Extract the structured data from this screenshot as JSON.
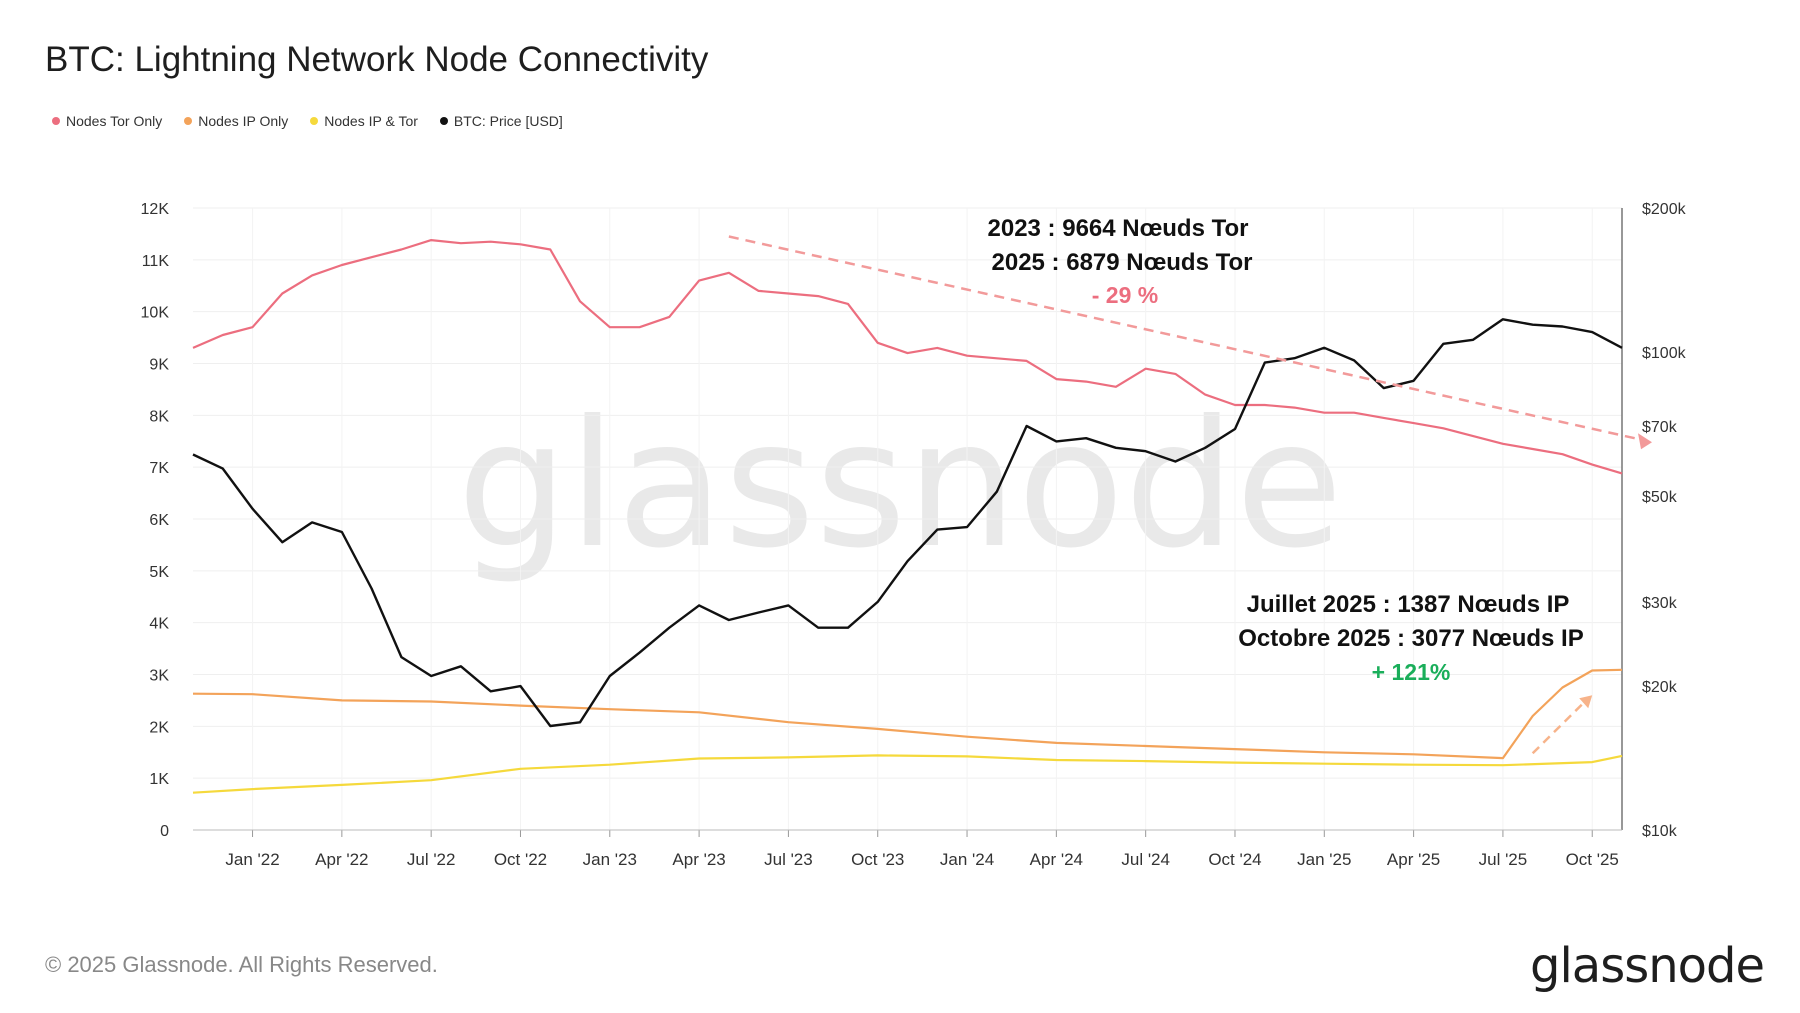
{
  "title": "BTC: Lightning Network Node Connectivity",
  "legend": [
    {
      "label": "Nodes Tor Only",
      "color": "#ec6e7f"
    },
    {
      "label": "Nodes IP Only",
      "color": "#f3a35a"
    },
    {
      "label": "Nodes IP & Tor",
      "color": "#f5d93c"
    },
    {
      "label": "BTC: Price [USD]",
      "color": "#111111"
    }
  ],
  "annotations": {
    "tor_line1": "2023 : 9664 Nœuds Tor",
    "tor_line2": "2025 : 6879 Nœuds Tor",
    "tor_pct": "- 29 %",
    "ip_line1": "Juillet 2025 : 1387 Nœuds IP",
    "ip_line2": "Octobre 2025 : 3077 Nœuds IP",
    "ip_pct": "+ 121%"
  },
  "watermark": "glassnode",
  "copyright": "© 2025 Glassnode. All Rights Reserved.",
  "logo": "glassnode",
  "colors": {
    "tor": "#ec6e7f",
    "ip": "#f3a35a",
    "iptor": "#f5d93c",
    "price": "#111111",
    "pct_down": "#ec6e7f",
    "pct_up": "#1aae5a",
    "trend": "#f29a9a"
  },
  "chart_data": {
    "type": "line",
    "title": "BTC: Lightning Network Node Connectivity",
    "x_ticks": [
      "Jan '22",
      "Apr '22",
      "Jul '22",
      "Oct '22",
      "Jan '23",
      "Apr '23",
      "Jul '23",
      "Oct '23",
      "Jan '24",
      "Apr '24",
      "Jul '24",
      "Oct '24",
      "Jan '25",
      "Apr '25",
      "Jul '25",
      "Oct '25"
    ],
    "x_tick_dates": [
      "2022-01",
      "2022-04",
      "2022-07",
      "2022-10",
      "2023-01",
      "2023-04",
      "2023-07",
      "2023-10",
      "2024-01",
      "2024-04",
      "2024-07",
      "2024-10",
      "2025-01",
      "2025-04",
      "2025-07",
      "2025-10"
    ],
    "x_range": [
      "2021-11",
      "2025-11"
    ],
    "y_left": {
      "ticks": [
        "0",
        "1K",
        "2K",
        "3K",
        "4K",
        "5K",
        "6K",
        "7K",
        "8K",
        "9K",
        "10K",
        "11K",
        "12K"
      ],
      "range": [
        0,
        12000
      ]
    },
    "y_right": {
      "scale": "log",
      "ticks": [
        {
          "label": "$10k",
          "value": 10000
        },
        {
          "label": "$20k",
          "value": 20000
        },
        {
          "label": "$30k",
          "value": 30000
        },
        {
          "label": "$50k",
          "value": 50000
        },
        {
          "label": "$70k",
          "value": 70000
        },
        {
          "label": "$100k",
          "value": 100000
        },
        {
          "label": "$200k",
          "value": 200000
        }
      ],
      "range": [
        10000,
        200000
      ]
    },
    "grid": true,
    "legend_position": "top-left",
    "series": [
      {
        "name": "Nodes Tor Only",
        "axis": "left",
        "points": [
          [
            "2021-11",
            9300
          ],
          [
            "2021-12",
            9550
          ],
          [
            "2022-01",
            9700
          ],
          [
            "2022-02",
            10350
          ],
          [
            "2022-03",
            10700
          ],
          [
            "2022-04",
            10900
          ],
          [
            "2022-05",
            11050
          ],
          [
            "2022-06",
            11200
          ],
          [
            "2022-07",
            11380
          ],
          [
            "2022-08",
            11320
          ],
          [
            "2022-09",
            11350
          ],
          [
            "2022-10",
            11300
          ],
          [
            "2022-11",
            11200
          ],
          [
            "2022-12",
            10200
          ],
          [
            "2023-01",
            9700
          ],
          [
            "2023-02",
            9700
          ],
          [
            "2023-03",
            9900
          ],
          [
            "2023-04",
            10600
          ],
          [
            "2023-05",
            10750
          ],
          [
            "2023-06",
            10400
          ],
          [
            "2023-07",
            10350
          ],
          [
            "2023-08",
            10300
          ],
          [
            "2023-09",
            10150
          ],
          [
            "2023-10",
            9400
          ],
          [
            "2023-11",
            9200
          ],
          [
            "2023-12",
            9300
          ],
          [
            "2024-01",
            9150
          ],
          [
            "2024-02",
            9100
          ],
          [
            "2024-03",
            9050
          ],
          [
            "2024-04",
            8700
          ],
          [
            "2024-05",
            8650
          ],
          [
            "2024-06",
            8550
          ],
          [
            "2024-07",
            8900
          ],
          [
            "2024-08",
            8800
          ],
          [
            "2024-09",
            8400
          ],
          [
            "2024-10",
            8200
          ],
          [
            "2024-11",
            8200
          ],
          [
            "2024-12",
            8150
          ],
          [
            "2025-01",
            8050
          ],
          [
            "2025-02",
            8050
          ],
          [
            "2025-03",
            7950
          ],
          [
            "2025-04",
            7850
          ],
          [
            "2025-05",
            7750
          ],
          [
            "2025-06",
            7600
          ],
          [
            "2025-07",
            7450
          ],
          [
            "2025-08",
            7350
          ],
          [
            "2025-09",
            7250
          ],
          [
            "2025-10",
            7050
          ],
          [
            "2025-11",
            6879
          ]
        ]
      },
      {
        "name": "Nodes IP Only",
        "axis": "left",
        "points": [
          [
            "2021-11",
            2630
          ],
          [
            "2022-01",
            2620
          ],
          [
            "2022-04",
            2500
          ],
          [
            "2022-07",
            2480
          ],
          [
            "2022-10",
            2400
          ],
          [
            "2023-01",
            2330
          ],
          [
            "2023-04",
            2270
          ],
          [
            "2023-07",
            2080
          ],
          [
            "2023-10",
            1950
          ],
          [
            "2024-01",
            1800
          ],
          [
            "2024-04",
            1680
          ],
          [
            "2024-07",
            1620
          ],
          [
            "2024-10",
            1560
          ],
          [
            "2025-01",
            1500
          ],
          [
            "2025-04",
            1460
          ],
          [
            "2025-07",
            1387
          ],
          [
            "2025-08",
            2200
          ],
          [
            "2025-09",
            2750
          ],
          [
            "2025-10",
            3077
          ],
          [
            "2025-11",
            3090
          ]
        ]
      },
      {
        "name": "Nodes IP & Tor",
        "axis": "left",
        "points": [
          [
            "2021-11",
            720
          ],
          [
            "2022-01",
            790
          ],
          [
            "2022-04",
            870
          ],
          [
            "2022-07",
            960
          ],
          [
            "2022-10",
            1180
          ],
          [
            "2023-01",
            1260
          ],
          [
            "2023-04",
            1380
          ],
          [
            "2023-07",
            1400
          ],
          [
            "2023-10",
            1440
          ],
          [
            "2024-01",
            1420
          ],
          [
            "2024-04",
            1350
          ],
          [
            "2024-07",
            1330
          ],
          [
            "2024-10",
            1300
          ],
          [
            "2025-01",
            1280
          ],
          [
            "2025-04",
            1260
          ],
          [
            "2025-07",
            1250
          ],
          [
            "2025-10",
            1310
          ],
          [
            "2025-11",
            1430
          ]
        ]
      },
      {
        "name": "BTC: Price [USD]",
        "axis": "right",
        "points": [
          [
            "2021-11",
            61000
          ],
          [
            "2021-12",
            57000
          ],
          [
            "2022-01",
            47000
          ],
          [
            "2022-02",
            40000
          ],
          [
            "2022-03",
            44000
          ],
          [
            "2022-04",
            42000
          ],
          [
            "2022-05",
            32000
          ],
          [
            "2022-06",
            23000
          ],
          [
            "2022-07",
            21000
          ],
          [
            "2022-08",
            22000
          ],
          [
            "2022-09",
            19500
          ],
          [
            "2022-10",
            20000
          ],
          [
            "2022-11",
            16500
          ],
          [
            "2022-12",
            16800
          ],
          [
            "2023-01",
            21000
          ],
          [
            "2023-02",
            23500
          ],
          [
            "2023-03",
            26500
          ],
          [
            "2023-04",
            29500
          ],
          [
            "2023-05",
            27500
          ],
          [
            "2023-06",
            28500
          ],
          [
            "2023-07",
            29500
          ],
          [
            "2023-08",
            26500
          ],
          [
            "2023-09",
            26500
          ],
          [
            "2023-10",
            30000
          ],
          [
            "2023-11",
            36500
          ],
          [
            "2023-12",
            42500
          ],
          [
            "2024-01",
            43000
          ],
          [
            "2024-02",
            51000
          ],
          [
            "2024-03",
            70000
          ],
          [
            "2024-04",
            65000
          ],
          [
            "2024-05",
            66000
          ],
          [
            "2024-06",
            63000
          ],
          [
            "2024-07",
            62000
          ],
          [
            "2024-08",
            59000
          ],
          [
            "2024-09",
            63000
          ],
          [
            "2024-10",
            69000
          ],
          [
            "2024-11",
            95000
          ],
          [
            "2024-12",
            97000
          ],
          [
            "2025-01",
            102000
          ],
          [
            "2025-02",
            96000
          ],
          [
            "2025-03",
            84000
          ],
          [
            "2025-04",
            87000
          ],
          [
            "2025-05",
            104000
          ],
          [
            "2025-06",
            106000
          ],
          [
            "2025-07",
            117000
          ],
          [
            "2025-08",
            114000
          ],
          [
            "2025-09",
            113000
          ],
          [
            "2025-10",
            110000
          ],
          [
            "2025-11",
            102000
          ]
        ]
      }
    ]
  }
}
